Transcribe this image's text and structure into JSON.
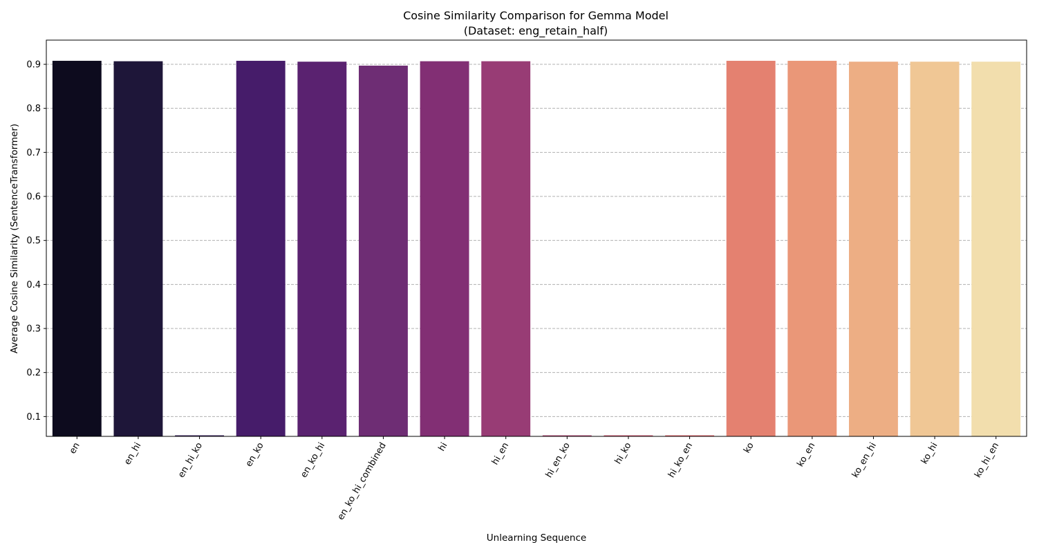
{
  "chart_data": {
    "type": "bar",
    "title": "Cosine Similarity Comparison for Gemma Model",
    "subtitle": "(Dataset: eng_retain_half)",
    "xlabel": "Unlearning Sequence",
    "ylabel": "Average Cosine Similarity (SentenceTransformer)",
    "ylim": [
      0.055,
      0.955
    ],
    "yticks": [
      0.1,
      0.2,
      0.3,
      0.4,
      0.5,
      0.6,
      0.7,
      0.8,
      0.9
    ],
    "grid": true,
    "categories": [
      "en",
      "en_hi",
      "en_hi_ko",
      "en_ko",
      "en_ko_hi",
      "en_ko_hi_combined",
      "hi",
      "hi_en",
      "hi_en_ko",
      "hi_ko",
      "hi_ko_en",
      "ko",
      "ko_en",
      "ko_en_hi",
      "ko_hi",
      "ko_hi_en"
    ],
    "values": [
      0.908,
      0.907,
      0.057,
      0.908,
      0.906,
      0.897,
      0.907,
      0.907,
      0.057,
      0.057,
      0.057,
      0.908,
      0.908,
      0.906,
      0.906,
      0.906
    ],
    "colors": [
      "#0d0b1e",
      "#1e1639",
      "#2f1b55",
      "#461c6a",
      "#5a2270",
      "#6e2d74",
      "#822f74",
      "#983c75",
      "#b04570",
      "#c94f68",
      "#dd5e63",
      "#e48170",
      "#ea9778",
      "#edae84",
      "#f0c795",
      "#f2dead"
    ]
  }
}
